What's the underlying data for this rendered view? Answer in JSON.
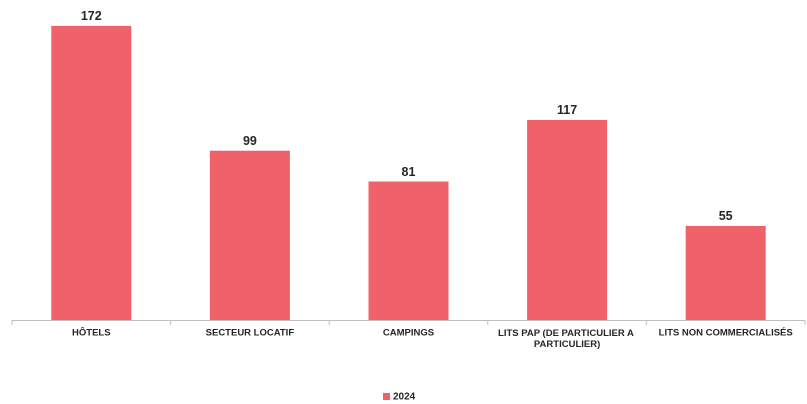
{
  "chart_data": {
    "type": "bar",
    "categories": [
      "HÔTELS",
      "SECTEUR LOCATIF",
      "CAMPINGS",
      "LITS PAP (DE PARTICULIER A PARTICULIER)",
      "LITS NON COMMERCIALISÉS"
    ],
    "series": [
      {
        "name": "2024",
        "color": "#f0626a",
        "values": [
          172,
          99,
          81,
          117,
          55
        ]
      }
    ],
    "legend": "bottom"
  }
}
